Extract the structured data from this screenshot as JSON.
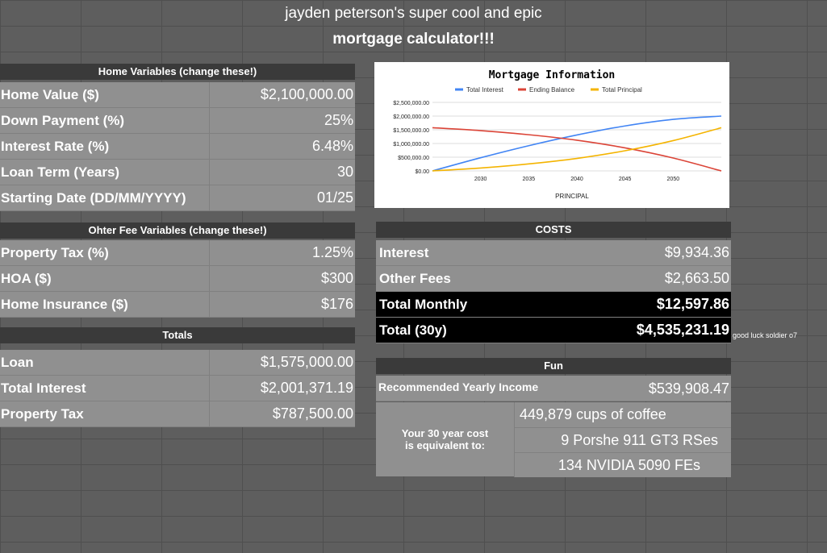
{
  "title": {
    "line1": "jayden peterson's super cool and epic",
    "line2": "mortgage calculator!!!"
  },
  "home_variables": {
    "header": "Home Variables (change these!)",
    "rows": [
      {
        "label": "Home Value ($)",
        "value": "$2,100,000.00"
      },
      {
        "label": "Down Payment (%)",
        "value": "25%"
      },
      {
        "label": "Interest Rate (%)",
        "value": "6.48%"
      },
      {
        "label": "Loan Term (Years)",
        "value": "30"
      },
      {
        "label": "Starting Date (DD/MM/YYYY)",
        "value": "01/25"
      }
    ]
  },
  "other_fees": {
    "header": "Ohter Fee Variables (change these!)",
    "rows": [
      {
        "label": "Property Tax (%)",
        "value": "1.25%"
      },
      {
        "label": "HOA ($)",
        "value": "$300"
      },
      {
        "label": "Home Insurance ($)",
        "value": "$176"
      }
    ]
  },
  "totals": {
    "header": "Totals",
    "rows": [
      {
        "label": "Loan",
        "value": "$1,575,000.00"
      },
      {
        "label": "Total Interest",
        "value": "$2,001,371.19"
      },
      {
        "label": "Property Tax",
        "value": "$787,500.00"
      }
    ]
  },
  "costs": {
    "header": "COSTS",
    "rows": [
      {
        "label": "Interest",
        "value": "$9,934.36"
      },
      {
        "label": "Other Fees",
        "value": "$2,663.50"
      },
      {
        "label": "Total Monthly",
        "value": "$12,597.86"
      },
      {
        "label": "Total (30y)",
        "value": "$4,535,231.19"
      }
    ],
    "note": "good luck soldier o7"
  },
  "fun": {
    "header": "Fun",
    "income_label": "Recommended Yearly Income",
    "income_value": "$539,908.47",
    "equiv_label": "Your 30 year cost is equivalent to:",
    "items": [
      "449,879 cups of coffee",
      "9 Porshe 911 GT3 RSes",
      "134 NVIDIA 5090 FEs"
    ]
  },
  "chart_data": {
    "type": "line",
    "title": "Mortgage Information",
    "xlabel": "PRINCIPAL",
    "ylabel": "",
    "xlim": [
      2025,
      2055
    ],
    "ylim": [
      0,
      2500000
    ],
    "x_ticks": [
      2030,
      2035,
      2040,
      2045,
      2050
    ],
    "y_ticks": [
      "$2,500,000.00",
      "$2,000,000.00",
      "$1,500,000.00",
      "$1,000,000.00",
      "$500,000.00",
      "$0.00"
    ],
    "legend_position": "top",
    "grid": true,
    "x": [
      2025,
      2030,
      2035,
      2040,
      2045,
      2050,
      2055
    ],
    "series": [
      {
        "name": "Total Interest",
        "color": "#4285f4",
        "values": [
          0,
          480000,
          920000,
          1310000,
          1640000,
          1880000,
          2000000
        ]
      },
      {
        "name": "Ending Balance",
        "color": "#db4437",
        "values": [
          1575000,
          1470000,
          1320000,
          1120000,
          840000,
          470000,
          0
        ]
      },
      {
        "name": "Total Principal",
        "color": "#f4b400",
        "values": [
          0,
          105000,
          255000,
          455000,
          735000,
          1105000,
          1575000
        ]
      }
    ]
  }
}
